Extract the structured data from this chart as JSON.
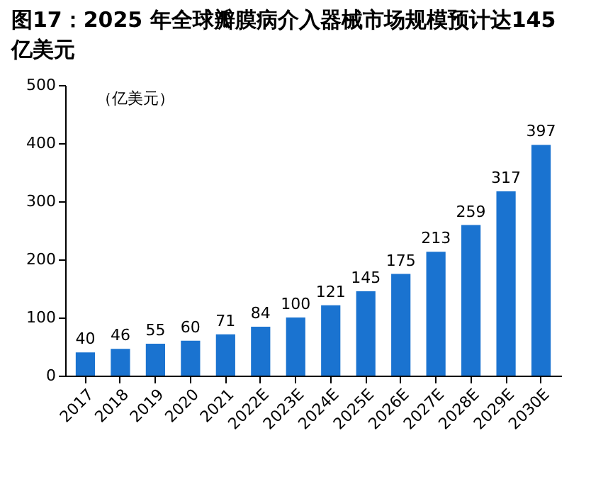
{
  "chart_data": {
    "type": "bar",
    "title": "图17：2025 年全球瓣膜病介入器械市场规模预计达145 亿美元",
    "annotations": [
      "（亿美元）"
    ],
    "categories": [
      "2017",
      "2018",
      "2019",
      "2020",
      "2021",
      "2022E",
      "2023E",
      "2024E",
      "2025E",
      "2026E",
      "2027E",
      "2028E",
      "2029E",
      "2030E"
    ],
    "values": [
      40,
      46,
      55,
      60,
      71,
      84,
      100,
      121,
      145,
      175,
      213,
      259,
      317,
      397
    ],
    "color": "#1a73d0",
    "ylim": [
      0,
      500
    ],
    "yticks": [
      0,
      100,
      200,
      300,
      400,
      500
    ],
    "grid": false,
    "data_labels": true
  }
}
